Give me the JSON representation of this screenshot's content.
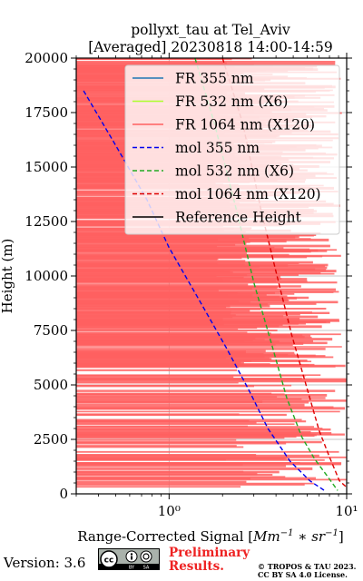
{
  "chart_data": {
    "type": "line",
    "title": "pollyxt_tau at Tel_Aviv",
    "subtitle": "[Averaged] 20230818 14:00-14:59",
    "xlabel": "Range-Corrected Signal [Mm⁻¹ * sr⁻¹]",
    "ylabel": "Height (m)",
    "xscale": "log",
    "xlim": [
      0.3,
      10
    ],
    "ylim": [
      0,
      20000
    ],
    "xticks": [
      1,
      10
    ],
    "xtick_labels": [
      "10⁰",
      "10¹"
    ],
    "yticks": [
      0,
      2500,
      5000,
      7500,
      10000,
      12500,
      15000,
      17500,
      20000
    ],
    "ytick_labels": [
      "0",
      "2500",
      "5000",
      "7500",
      "10000",
      "12500",
      "15000",
      "17500",
      "20000"
    ],
    "grid": true,
    "legend_position": "top-right",
    "series": [
      {
        "name": "FR 355 nm",
        "color": "#1f77b4",
        "style": "solid",
        "points": []
      },
      {
        "name": "FR 532 nm (X6)",
        "color": "#adff2f",
        "style": "solid",
        "points": []
      },
      {
        "name": "FR 1064 nm (X120)",
        "color": "#ff6060",
        "style": "solid",
        "note_only": false,
        "points": [
          [
            10,
            19700
          ],
          [
            10,
            18900
          ],
          [
            10,
            17600
          ],
          [
            10,
            16400
          ],
          [
            10,
            15200
          ],
          [
            10,
            14300
          ],
          [
            10,
            13200
          ],
          [
            10,
            12000
          ],
          [
            10,
            11100
          ],
          [
            10,
            10300
          ],
          [
            10,
            9200
          ],
          [
            9,
            8700
          ],
          [
            9,
            8000
          ],
          [
            9,
            7400
          ],
          [
            9,
            6800
          ],
          [
            8,
            6300
          ],
          [
            8,
            5900
          ]
        ]
      },
      {
        "name": "mol 355 nm",
        "color": "#0000ee",
        "style": "dashed",
        "points": [
          [
            0.33,
            18500
          ],
          [
            0.5,
            16000
          ],
          [
            0.75,
            13500
          ],
          [
            1.0,
            11300
          ],
          [
            1.5,
            8800
          ],
          [
            2.1,
            6700
          ],
          [
            2.8,
            4800
          ],
          [
            3.6,
            3000
          ],
          [
            4.8,
            1500
          ],
          [
            6.2,
            600
          ],
          [
            7.5,
            150
          ]
        ]
      },
      {
        "name": "mol 532 nm (X6)",
        "color": "#22aa22",
        "style": "dashed",
        "points": [
          [
            1.4,
            20000
          ],
          [
            1.8,
            17000
          ],
          [
            2.4,
            13000
          ],
          [
            3.0,
            9700
          ],
          [
            3.8,
            6800
          ],
          [
            4.6,
            4400
          ],
          [
            5.6,
            2600
          ],
          [
            6.6,
            1600
          ],
          [
            7.8,
            800
          ],
          [
            8.9,
            150
          ]
        ]
      },
      {
        "name": "mol 1064 nm (X120)",
        "color": "#dd0000",
        "style": "dashed",
        "points": [
          [
            2.0,
            20000
          ],
          [
            2.6,
            17000
          ],
          [
            3.3,
            13000
          ],
          [
            4.0,
            10200
          ],
          [
            4.9,
            7300
          ],
          [
            6.0,
            4800
          ],
          [
            7.0,
            2900
          ],
          [
            8.0,
            1700
          ],
          [
            9.1,
            600
          ],
          [
            10,
            300
          ]
        ]
      },
      {
        "name": "Reference Height",
        "color": "#000000",
        "style": "solid",
        "points": []
      }
    ]
  },
  "footer": {
    "version": "Version: 3.6",
    "preliminary": [
      "Preliminary",
      "Results."
    ],
    "copyright": [
      "© TROPOS & TAU 2023.",
      "CC BY SA 4.0 License."
    ],
    "cc_badge_text": "cc  BY  SA"
  }
}
